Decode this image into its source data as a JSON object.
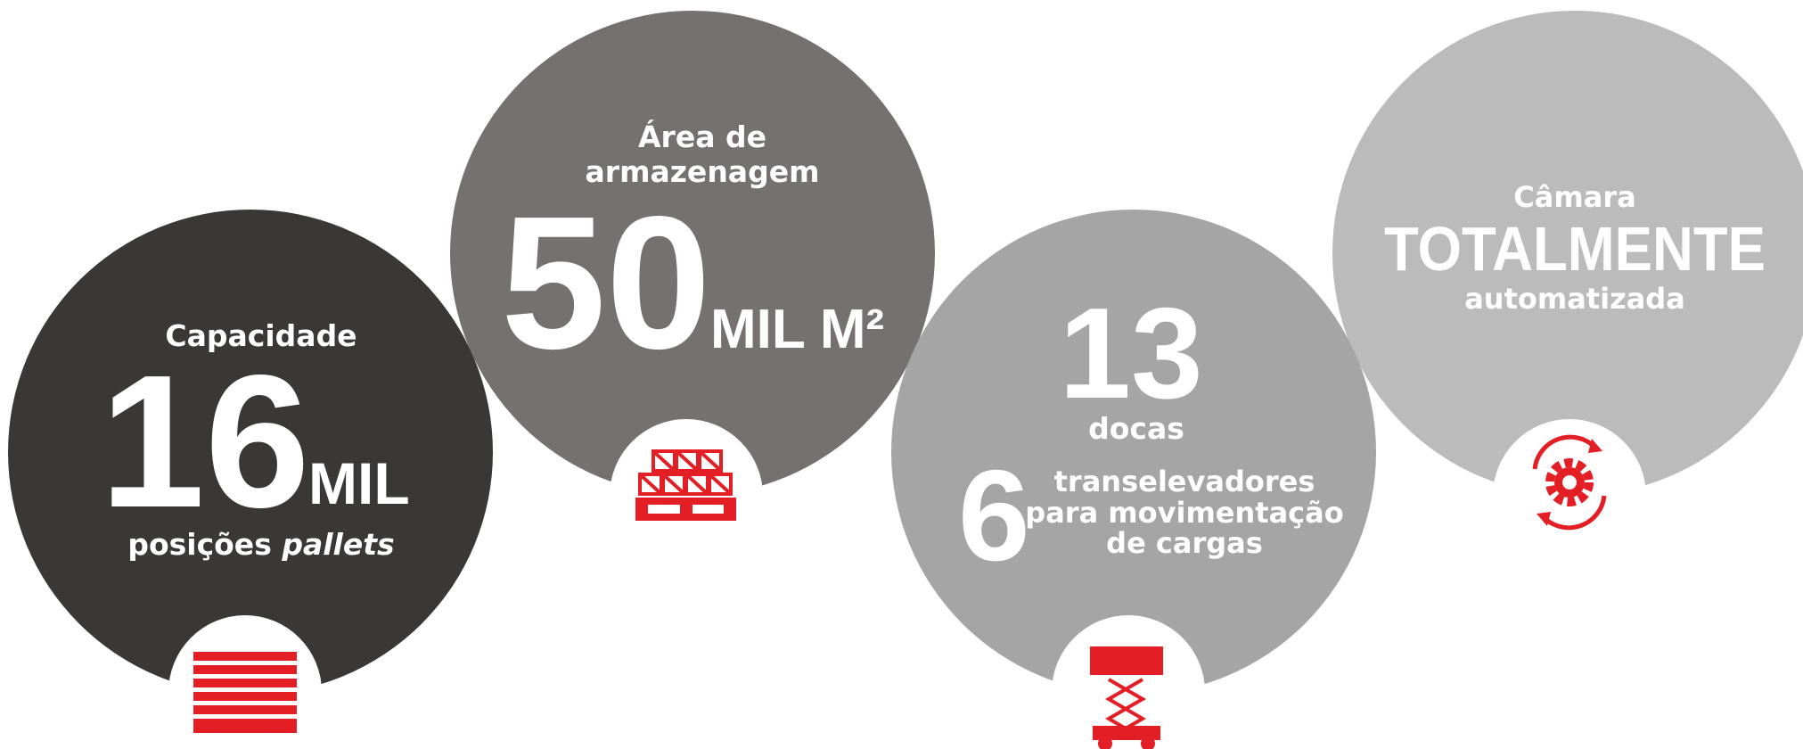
{
  "cards": [
    {
      "label": "Capacidade",
      "number": "16",
      "unit": "MIL",
      "caption": "posições",
      "caption_italic": "pallets"
    },
    {
      "label_lines": [
        "Área de",
        "armazenagem"
      ],
      "number": "50",
      "unit": "MIL M²"
    },
    {
      "number": "13",
      "label": "docas",
      "number2": "6",
      "caption_lines": [
        "transelevadores",
        "para movimentação",
        "de cargas"
      ]
    },
    {
      "label": "Câmara",
      "highlight": "TOTALMENTE",
      "caption": "automatizada"
    }
  ]
}
